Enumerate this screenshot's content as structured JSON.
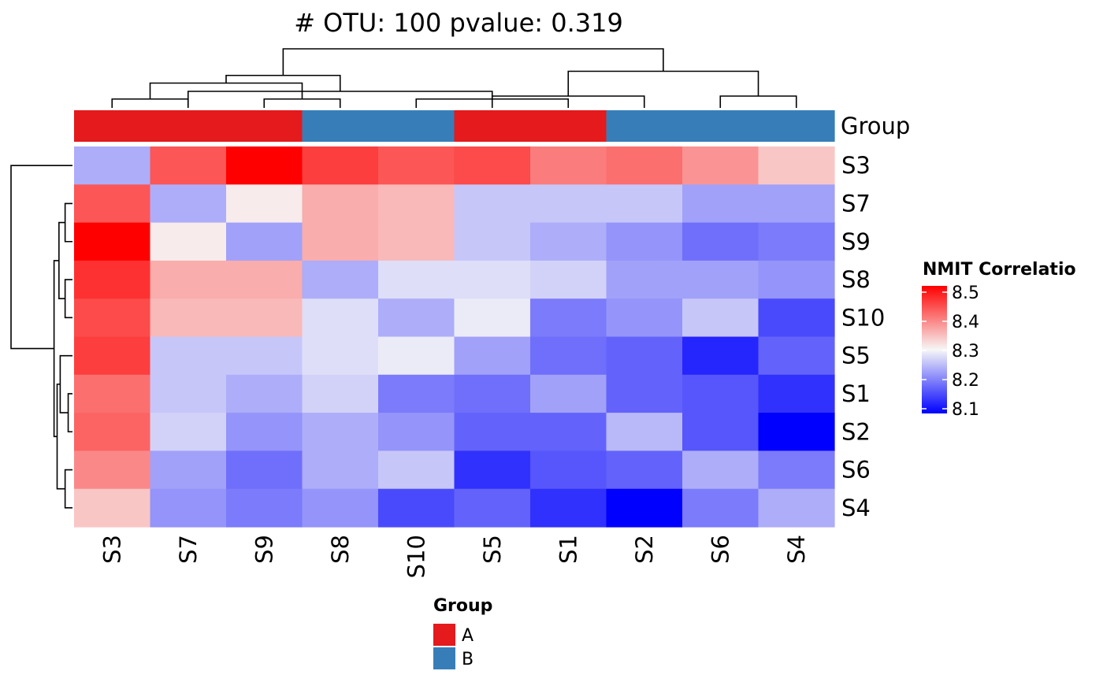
{
  "title": "# OTU: 100 pvalue: 0.319",
  "annotation_label": "Group",
  "chart_data": {
    "type": "heatmap",
    "title": "# OTU: 100 pvalue: 0.319",
    "rows": [
      "S3",
      "S7",
      "S9",
      "S8",
      "S10",
      "S5",
      "S1",
      "S2",
      "S6",
      "S4"
    ],
    "columns": [
      "S3",
      "S7",
      "S9",
      "S8",
      "S10",
      "S5",
      "S1",
      "S2",
      "S6",
      "S4"
    ],
    "column_group": [
      "A",
      "A",
      "A",
      "B",
      "B",
      "A",
      "A",
      "B",
      "B",
      "B"
    ],
    "values": [
      [
        8.24,
        8.43,
        8.5,
        8.45,
        8.43,
        8.44,
        8.4,
        8.41,
        8.38,
        8.34
      ],
      [
        8.43,
        8.24,
        8.31,
        8.36,
        8.35,
        8.26,
        8.26,
        8.26,
        8.23,
        8.23
      ],
      [
        8.5,
        8.31,
        8.23,
        8.36,
        8.35,
        8.26,
        8.24,
        8.22,
        8.19,
        8.2
      ],
      [
        8.46,
        8.36,
        8.36,
        8.24,
        8.28,
        8.28,
        8.27,
        8.23,
        8.23,
        8.22
      ],
      [
        8.44,
        8.35,
        8.35,
        8.28,
        8.24,
        8.29,
        8.2,
        8.22,
        8.26,
        8.16
      ],
      [
        8.45,
        8.26,
        8.26,
        8.28,
        8.29,
        8.23,
        8.19,
        8.18,
        8.13,
        8.18
      ],
      [
        8.41,
        8.26,
        8.24,
        8.27,
        8.2,
        8.19,
        8.23,
        8.18,
        8.17,
        8.14
      ],
      [
        8.42,
        8.27,
        8.22,
        8.24,
        8.22,
        8.18,
        8.18,
        8.25,
        8.17,
        8.1
      ],
      [
        8.39,
        8.23,
        8.19,
        8.24,
        8.26,
        8.14,
        8.17,
        8.18,
        8.24,
        8.2
      ],
      [
        8.34,
        8.22,
        8.2,
        8.22,
        8.16,
        8.18,
        8.14,
        8.1,
        8.2,
        8.24
      ]
    ],
    "color_scale": {
      "title": "NMIT Correlatio",
      "range": [
        8.1,
        8.5
      ],
      "breaks": [
        8.1,
        8.2,
        8.3,
        8.4,
        8.5
      ],
      "tick_labels": [
        "8.1",
        "8.2",
        "8.3",
        "8.4",
        "8.5"
      ],
      "low": "#0000ff",
      "mid": "#f7f7f7",
      "high": "#ff0000",
      "mid_value": 8.3
    },
    "group_legend": {
      "title": "Group",
      "entries": [
        {
          "label": "A",
          "color": "#e41a1c"
        },
        {
          "label": "B",
          "color": "#377eb8"
        }
      ]
    },
    "dendrogram_columns": {
      "merges": [
        [
          -5,
          -7
        ],
        [
          -1,
          -2
        ],
        [
          -3,
          -4
        ],
        [
          -6,
          -8
        ],
        [
          -9,
          -10
        ],
        [
          -2,
          1
        ],
        [
          2,
          3
        ],
        [
          6,
          7
        ],
        [
          4,
          5
        ],
        [
          8,
          9
        ]
      ],
      "heights": [
        0.15,
        0.15,
        0.15,
        0.2,
        0.2,
        0.28,
        0.42,
        0.55,
        0.62,
        1.0
      ]
    },
    "dendrogram_rows": {
      "merges": [
        [
          -2,
          -3
        ],
        [
          -4,
          -5
        ],
        [
          -7,
          -8
        ],
        [
          -9,
          -10
        ],
        [
          -6,
          3
        ],
        [
          1,
          2
        ],
        [
          5,
          4
        ],
        [
          6,
          7
        ],
        [
          -1,
          8
        ]
      ],
      "heights": [
        0.12,
        0.12,
        0.07,
        0.12,
        0.2,
        0.22,
        0.25,
        0.3,
        1.0
      ]
    }
  }
}
